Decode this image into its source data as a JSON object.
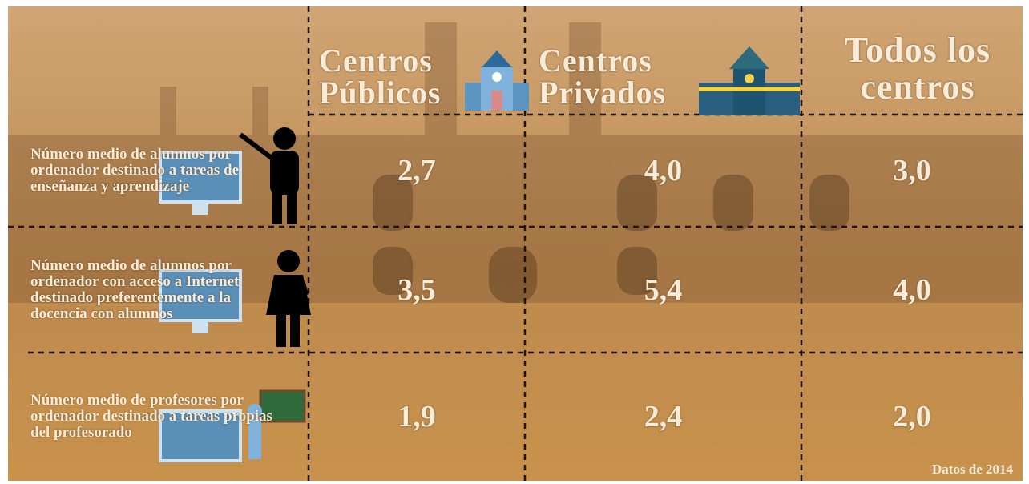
{
  "header": {
    "columns": [
      "Centros Públicos",
      "Centros Privados",
      "Todos los centros"
    ]
  },
  "rows": [
    {
      "label": "Número medio de alumnos por ordenador destinado a tareas de enseñanza y aprendizaje",
      "values": [
        "2,7",
        "4,0",
        "3,0"
      ]
    },
    {
      "label": "Número medio de alumnos por ordenador con acceso a Internet destinado preferentemente a la docencia con alumnos",
      "values": [
        "3,5",
        "5,4",
        "4,0"
      ]
    },
    {
      "label": "Número medio de profesores por ordenador destinado a tareas propias del profesorado",
      "values": [
        "1,9",
        "2,4",
        "2,0"
      ]
    }
  ],
  "footer": "Datos de 2014"
}
